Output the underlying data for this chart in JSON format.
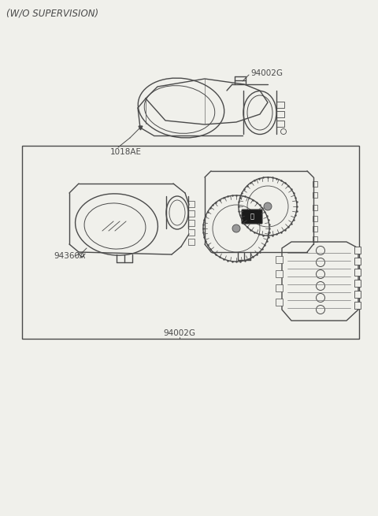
{
  "bg_color": "#f0f0eb",
  "line_color": "#4a4a4a",
  "text_color": "#4a4a4a",
  "title_top": "(W/O SUPERVISION)",
  "label_94002G_top": "94002G",
  "label_1018AE": "1018AE",
  "label_94002G_box": "94002G",
  "label_94360A": "94360A",
  "fig_width": 4.8,
  "fig_height": 6.55,
  "dpi": 100
}
